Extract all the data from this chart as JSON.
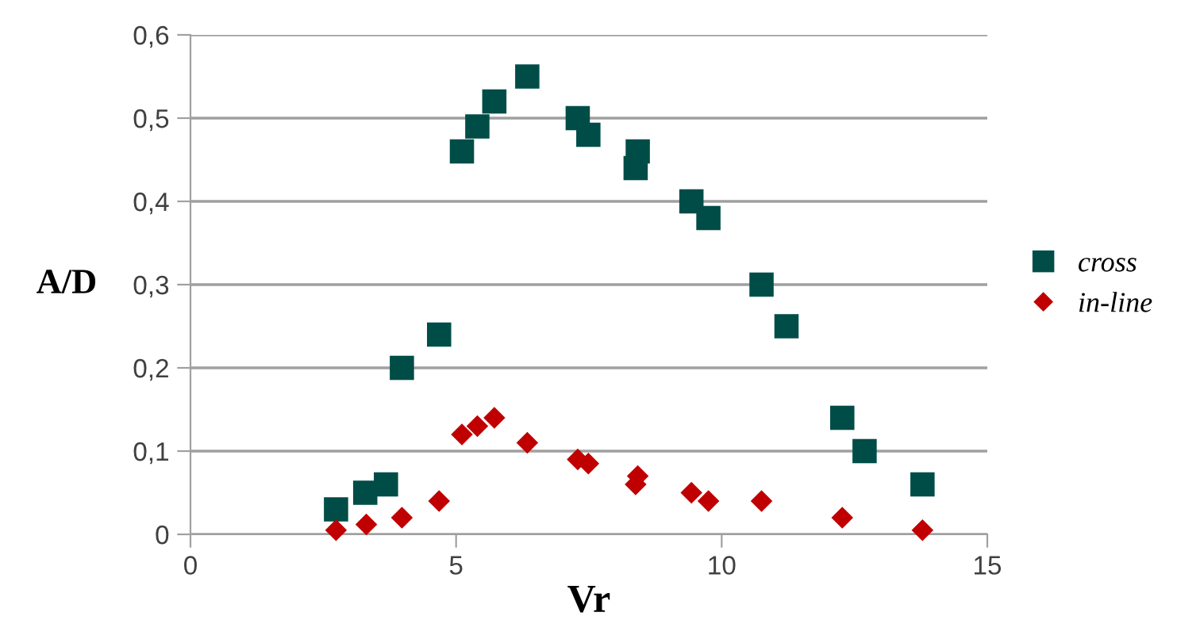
{
  "chart_data": {
    "type": "scatter",
    "xlabel": "Vr",
    "ylabel": "A/D",
    "xlim": [
      0,
      15
    ],
    "xticks": [
      0,
      5,
      10,
      15
    ],
    "ylim": [
      0,
      0.6
    ],
    "yticks": [
      {
        "value": 0,
        "label": "0"
      },
      {
        "value": 0.1,
        "label": "0,1"
      },
      {
        "value": 0.2,
        "label": "0,2"
      },
      {
        "value": 0.3,
        "label": "0,3"
      },
      {
        "value": 0.4,
        "label": "0,4"
      },
      {
        "value": 0.5,
        "label": "0,5"
      },
      {
        "value": 0.6,
        "label": "0,6"
      }
    ],
    "grid": "y",
    "legend": "right",
    "series": [
      {
        "name": "cross",
        "color": "#004d47",
        "marker": "square",
        "x": [
          2.74,
          3.29,
          3.68,
          3.98,
          4.68,
          5.11,
          5.4,
          5.72,
          6.34,
          7.29,
          7.49,
          8.38,
          8.42,
          9.43,
          9.75,
          10.75,
          11.22,
          12.27,
          12.69,
          13.78
        ],
        "values": [
          0.03,
          0.05,
          0.06,
          0.2,
          0.24,
          0.46,
          0.49,
          0.52,
          0.55,
          0.5,
          0.48,
          0.44,
          0.46,
          0.4,
          0.38,
          0.3,
          0.25,
          0.14,
          0.1,
          0.06
        ]
      },
      {
        "name": "in-line",
        "color": "#c00000",
        "marker": "diamond",
        "x": [
          2.74,
          3.26,
          3.31,
          3.98,
          4.68,
          5.11,
          5.4,
          5.72,
          6.34,
          7.29,
          7.49,
          8.38,
          8.42,
          9.43,
          9.75,
          10.75,
          12.27,
          13.78
        ],
        "values": [
          0.005,
          null,
          0.012,
          0.02,
          0.04,
          0.12,
          0.13,
          0.14,
          0.11,
          0.09,
          0.085,
          0.06,
          0.07,
          0.05,
          0.04,
          0.04,
          0.02,
          0.005
        ]
      }
    ]
  }
}
